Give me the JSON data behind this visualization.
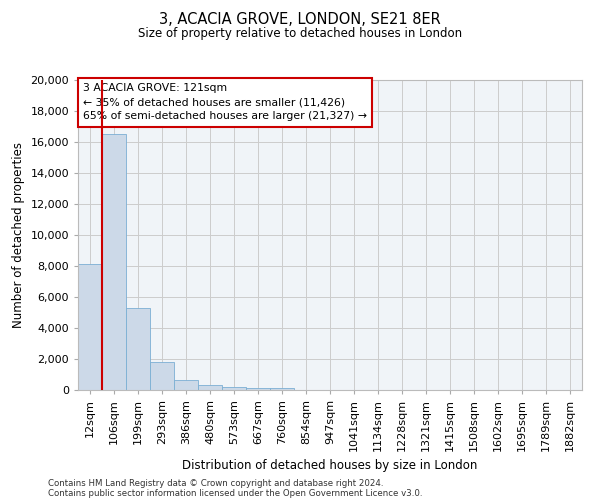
{
  "title": "3, ACACIA GROVE, LONDON, SE21 8ER",
  "subtitle": "Size of property relative to detached houses in London",
  "xlabel": "Distribution of detached houses by size in London",
  "ylabel": "Number of detached properties",
  "footnote1": "Contains HM Land Registry data © Crown copyright and database right 2024.",
  "footnote2": "Contains public sector information licensed under the Open Government Licence v3.0.",
  "bar_color": "#ccd9e8",
  "bar_edgecolor": "#7bafd4",
  "vline_color": "#cc0000",
  "vline_x_index": 1,
  "annotation_text": "3 ACACIA GROVE: 121sqm\n← 35% of detached houses are smaller (11,426)\n65% of semi-detached houses are larger (21,327) →",
  "annotation_box_color": "white",
  "annotation_box_edgecolor": "#cc0000",
  "categories": [
    "12sqm",
    "106sqm",
    "199sqm",
    "293sqm",
    "386sqm",
    "480sqm",
    "573sqm",
    "667sqm",
    "760sqm",
    "854sqm",
    "947sqm",
    "1041sqm",
    "1134sqm",
    "1228sqm",
    "1321sqm",
    "1415sqm",
    "1508sqm",
    "1602sqm",
    "1695sqm",
    "1789sqm",
    "1882sqm"
  ],
  "values": [
    8100,
    16500,
    5300,
    1800,
    650,
    300,
    200,
    160,
    120,
    0,
    0,
    0,
    0,
    0,
    0,
    0,
    0,
    0,
    0,
    0,
    0
  ],
  "ylim": [
    0,
    20000
  ],
  "yticks": [
    0,
    2000,
    4000,
    6000,
    8000,
    10000,
    12000,
    14000,
    16000,
    18000,
    20000
  ],
  "grid_color": "#cccccc",
  "background_color": "#f0f4f8"
}
